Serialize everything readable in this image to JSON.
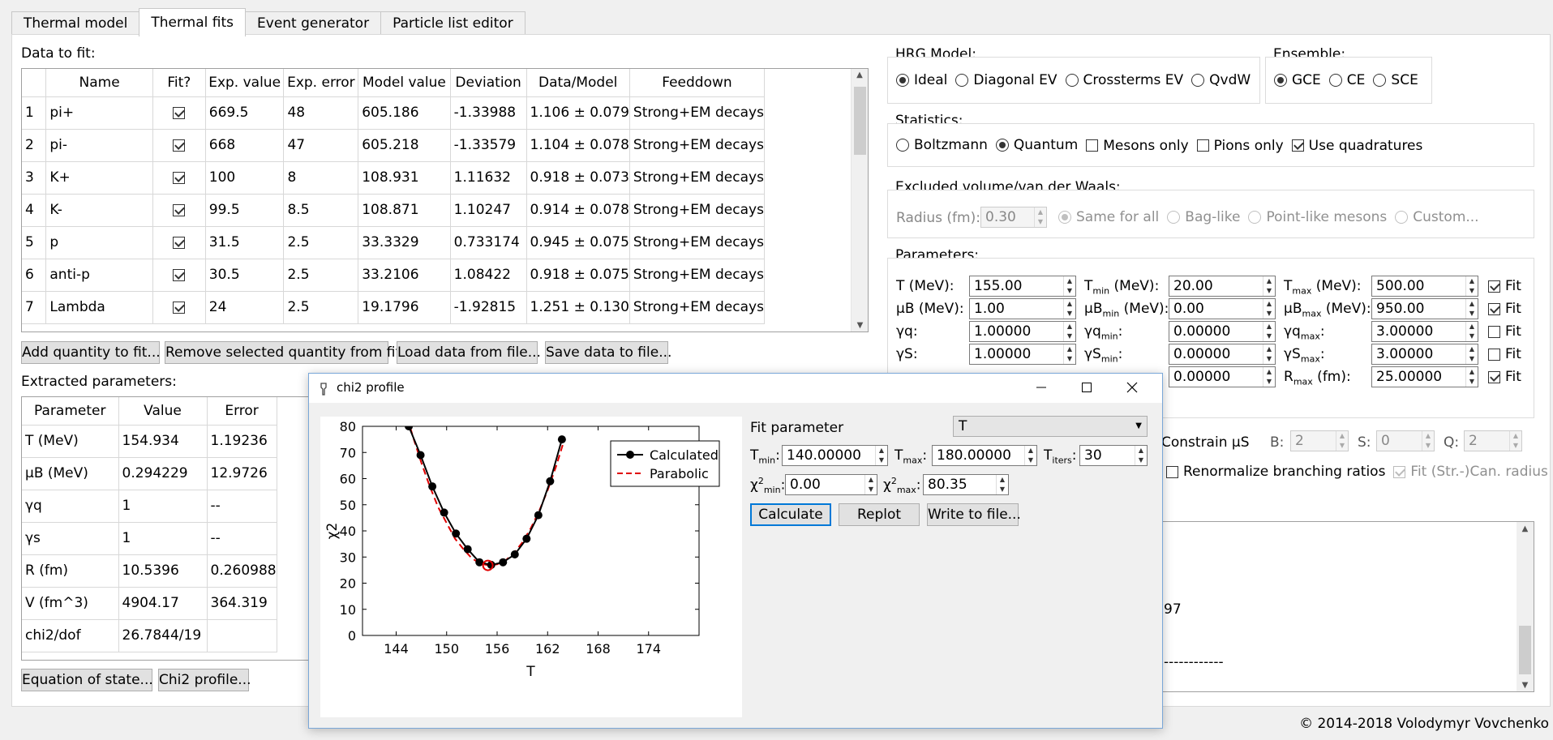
{
  "tabs": [
    "Thermal model",
    "Thermal fits",
    "Event generator",
    "Particle list editor"
  ],
  "data_to_fit": {
    "label": "Data to fit:",
    "headers": [
      "",
      "Name",
      "Fit?",
      "Exp. value",
      "Exp. error",
      "Model value",
      "Deviation",
      "Data/Model",
      "Feeddown"
    ],
    "rows": [
      {
        "n": "1",
        "name": "pi+",
        "fit": true,
        "exp": "669.5",
        "err": "48",
        "model": "605.186",
        "dev": "-1.33988",
        "ratio": "1.106 ± 0.079",
        "feed": "Strong+EM decays"
      },
      {
        "n": "2",
        "name": "pi-",
        "fit": true,
        "exp": "668",
        "err": "47",
        "model": "605.218",
        "dev": "-1.33579",
        "ratio": "1.104 ± 0.078",
        "feed": "Strong+EM decays"
      },
      {
        "n": "3",
        "name": "K+",
        "fit": true,
        "exp": "100",
        "err": "8",
        "model": "108.931",
        "dev": "1.11632",
        "ratio": "0.918 ± 0.073",
        "feed": "Strong+EM decays"
      },
      {
        "n": "4",
        "name": "K-",
        "fit": true,
        "exp": "99.5",
        "err": "8.5",
        "model": "108.871",
        "dev": "1.10247",
        "ratio": "0.914 ± 0.078",
        "feed": "Strong+EM decays"
      },
      {
        "n": "5",
        "name": "p",
        "fit": true,
        "exp": "31.5",
        "err": "2.5",
        "model": "33.3329",
        "dev": "0.733174",
        "ratio": "0.945 ± 0.075",
        "feed": "Strong+EM decays"
      },
      {
        "n": "6",
        "name": "anti-p",
        "fit": true,
        "exp": "30.5",
        "err": "2.5",
        "model": "33.2106",
        "dev": "1.08422",
        "ratio": "0.918 ± 0.075",
        "feed": "Strong+EM decays"
      },
      {
        "n": "7",
        "name": "Lambda",
        "fit": true,
        "exp": "24",
        "err": "2.5",
        "model": "19.1796",
        "dev": "-1.92815",
        "ratio": "1.251 ± 0.130",
        "feed": "Strong+EM decays"
      }
    ],
    "buttons": [
      "Add quantity to fit...",
      "Remove selected quantity from fit",
      "Load data from file...",
      "Save data to file..."
    ]
  },
  "extracted": {
    "label": "Extracted parameters:",
    "headers": [
      "Parameter",
      "Value",
      "Error"
    ],
    "rows": [
      [
        "T (MeV)",
        "154.934",
        "1.19236"
      ],
      [
        "μB (MeV)",
        "0.294229",
        "12.9726"
      ],
      [
        "γq",
        "1",
        "--"
      ],
      [
        "γs",
        "1",
        "--"
      ],
      [
        "R (fm)",
        "10.5396",
        "0.260988"
      ],
      [
        "V (fm^3)",
        "4904.17",
        "364.319"
      ],
      [
        "chi2/dof",
        "26.7844/19",
        ""
      ]
    ],
    "buttons": [
      "Equation of state...",
      "Chi2 profile..."
    ]
  },
  "hrg": {
    "label": "HRG Model:",
    "options": [
      "Ideal",
      "Diagonal EV",
      "Crossterms EV",
      "QvdW"
    ],
    "selected": 0
  },
  "ensemble": {
    "label": "Ensemble:",
    "options": [
      "GCE",
      "CE",
      "SCE"
    ],
    "selected": 0
  },
  "statistics": {
    "label": "Statistics:",
    "radios": [
      "Boltzmann",
      "Quantum"
    ],
    "selected": 1,
    "checks": [
      {
        "label": "Mesons only",
        "on": false
      },
      {
        "label": "Pions only",
        "on": false
      },
      {
        "label": "Use quadratures",
        "on": true
      }
    ]
  },
  "ev": {
    "label": "Excluded volume/van der Waals:",
    "radius_label": "Radius (fm):",
    "radius": "0.30",
    "options": [
      "Same for all",
      "Bag-like",
      "Point-like mesons",
      "Custom..."
    ]
  },
  "params": {
    "label": "Parameters:",
    "rows": [
      {
        "l1": "T (MeV):",
        "v1": "155.00",
        "l2": "Tmin (MeV):",
        "v2": "20.00",
        "l3": "Tmax (MeV):",
        "v3": "500.00",
        "fit": true
      },
      {
        "l1": "μB (MeV):",
        "v1": "1.00",
        "l2": "μBmin (MeV):",
        "v2": "0.00",
        "l3": "μBmax (MeV):",
        "v3": "950.00",
        "fit": true
      },
      {
        "l1": "γq:",
        "v1": "1.00000",
        "l2": "γqmin:",
        "v2": "0.00000",
        "l3": "γqmax:",
        "v3": "3.00000",
        "fit": false
      },
      {
        "l1": "γS:",
        "v1": "1.00000",
        "l2": "γSmin:",
        "v2": "0.00000",
        "l3": "γSmax:",
        "v3": "3.00000",
        "fit": false
      },
      {
        "l1": "",
        "v1": "",
        "l2": "",
        "v2": "0.00000",
        "l3": "Rmax (fm):",
        "v3": "25.00000",
        "fit": true
      }
    ],
    "fit_label": "Fit"
  },
  "constraints": {
    "constrain": "Constrain μS",
    "B_label": "B:",
    "B": "2",
    "S_label": "S:",
    "S": "0",
    "Q_label": "Q:",
    "Q": "2",
    "renorm": "Renormalize branching ratios",
    "fitcan": "Fit (Str.-)Can. radius"
  },
  "log": {
    "line1": "97",
    "line2": "------------"
  },
  "copyright": "© 2014-2018 Volodymyr Vovchenko",
  "dialog": {
    "title": "chi2 profile",
    "fit_param_label": "Fit parameter",
    "fit_param": "T",
    "tmin_label": "Tmin:",
    "tmin": "140.00000",
    "tmax_label": "Tmax:",
    "tmax": "180.00000",
    "titers_label": "Titers:",
    "titers": "30",
    "chimin_label": "χ2min:",
    "chimin": "0.00",
    "chimax_label": "χ2max:",
    "chimax": "80.35",
    "buttons": [
      "Calculate",
      "Replot",
      "Write to file..."
    ]
  },
  "chart_data": {
    "type": "line",
    "xlabel": "T",
    "ylabel": "χ2",
    "xlim": [
      140,
      180
    ],
    "ylim": [
      0,
      80
    ],
    "xticks": [
      144,
      150,
      156,
      162,
      168,
      174
    ],
    "yticks": [
      0,
      10,
      20,
      30,
      40,
      50,
      60,
      70,
      80
    ],
    "legend": "top-right",
    "series": [
      {
        "name": "Calculated",
        "color": "#000000",
        "x": [
          145.5,
          146.9,
          148.3,
          149.7,
          151.1,
          152.5,
          153.9,
          155.3,
          156.7,
          158.1,
          159.5,
          160.9,
          162.3,
          163.7
        ],
        "y": [
          80,
          69,
          57,
          47,
          39,
          33,
          28,
          27,
          28,
          31,
          37,
          46,
          59,
          75
        ]
      },
      {
        "name": "Parabolic",
        "color": "#e00000",
        "x": [
          145,
          146,
          147,
          148,
          149,
          150,
          151,
          152,
          153,
          154,
          155,
          156,
          157,
          158,
          159,
          160,
          161,
          162,
          163,
          164
        ],
        "y": [
          87,
          76,
          66,
          57,
          49,
          43,
          37,
          33,
          29.5,
          27.5,
          26.8,
          27.2,
          28.7,
          31.5,
          35.6,
          41,
          47.6,
          55.5,
          64.6,
          75
        ]
      }
    ],
    "minimum": {
      "x": 154.9,
      "y": 26.8
    }
  }
}
